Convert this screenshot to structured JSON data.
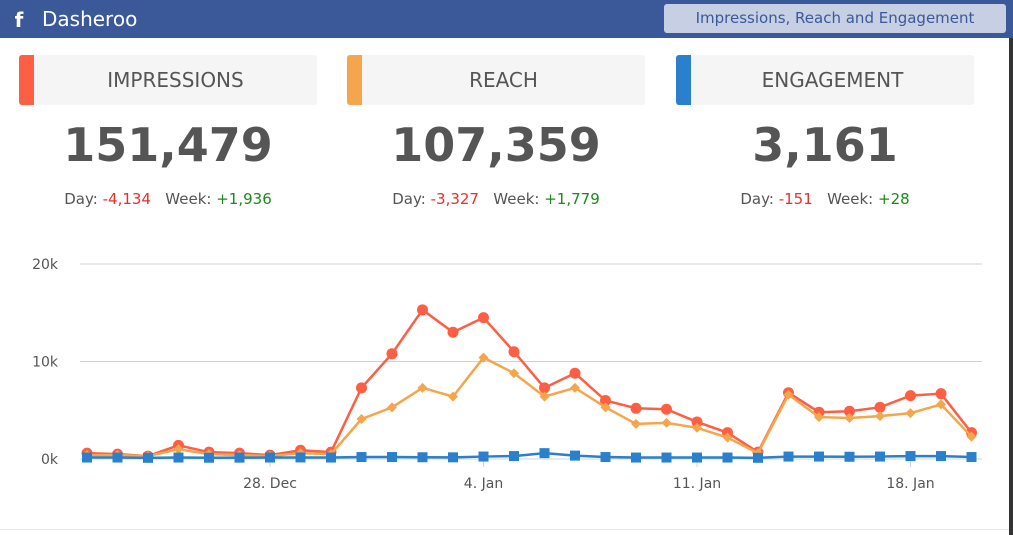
{
  "header": {
    "brand": "Dasheroo",
    "tab_label": "Impressions, Reach and Engagement",
    "icon": "facebook-icon",
    "color": "#3b5998"
  },
  "metrics": [
    {
      "label": "IMPRESSIONS",
      "value": "151,479",
      "day_label": "Day:",
      "day": "-4,134",
      "week_label": "Week:",
      "week": "+1,936",
      "color": "#fd5f45"
    },
    {
      "label": "REACH",
      "value": "107,359",
      "day_label": "Day:",
      "day": "-3,327",
      "week_label": "Week:",
      "week": "+1,779",
      "color": "#f5a54b"
    },
    {
      "label": "ENGAGEMENT",
      "value": "3,161",
      "day_label": "Day:",
      "day": "-151",
      "week_label": "Week:",
      "week": "+28",
      "color": "#2a80cc"
    }
  ],
  "chart_data": {
    "type": "line",
    "x_start": "2014-12-22",
    "x": [
      "22 Dec",
      "23 Dec",
      "24 Dec",
      "25 Dec",
      "26 Dec",
      "27 Dec",
      "28 Dec",
      "29 Dec",
      "30 Dec",
      "31 Dec",
      "1 Jan",
      "2 Jan",
      "3 Jan",
      "4 Jan",
      "5 Jan",
      "6 Jan",
      "7 Jan",
      "8 Jan",
      "9 Jan",
      "10 Jan",
      "11 Jan",
      "12 Jan",
      "13 Jan",
      "14 Jan",
      "15 Jan",
      "16 Jan",
      "17 Jan",
      "18 Jan",
      "19 Jan",
      "20 Jan"
    ],
    "x_ticks": [
      {
        "index": 6,
        "label": "28. Dec"
      },
      {
        "index": 13,
        "label": "4. Jan"
      },
      {
        "index": 20,
        "label": "11. Jan"
      },
      {
        "index": 27,
        "label": "18. Jan"
      }
    ],
    "y_ticks": [
      {
        "value": 0,
        "label": "0k"
      },
      {
        "value": 10000,
        "label": "10k"
      },
      {
        "value": 20000,
        "label": "20k"
      }
    ],
    "ylim": [
      0,
      20000
    ],
    "grid": true,
    "series": [
      {
        "key": "impressions",
        "color": "#fd5f45",
        "marker": "circle",
        "values": [
          600,
          500,
          300,
          1400,
          700,
          600,
          400,
          900,
          700,
          7300,
          10800,
          15300,
          13000,
          14500,
          11000,
          7300,
          8800,
          6000,
          5200,
          5100,
          3800,
          2700,
          700,
          6800,
          4800,
          4900,
          5300,
          6500,
          6700,
          2700
        ]
      },
      {
        "key": "reach",
        "color": "#f5a54b",
        "marker": "diamond",
        "values": [
          400,
          400,
          300,
          1000,
          500,
          400,
          300,
          600,
          500,
          4100,
          5300,
          7300,
          6400,
          10400,
          8800,
          6400,
          7300,
          5300,
          3600,
          3700,
          3200,
          2200,
          600,
          6600,
          4300,
          4200,
          4400,
          4700,
          5600,
          2300
        ]
      },
      {
        "key": "engagement",
        "color": "#2a80cc",
        "marker": "square",
        "values": [
          150,
          150,
          120,
          150,
          130,
          140,
          150,
          160,
          150,
          200,
          200,
          180,
          170,
          250,
          300,
          600,
          350,
          200,
          150,
          150,
          150,
          150,
          120,
          250,
          250,
          230,
          250,
          300,
          300,
          200
        ]
      }
    ]
  }
}
